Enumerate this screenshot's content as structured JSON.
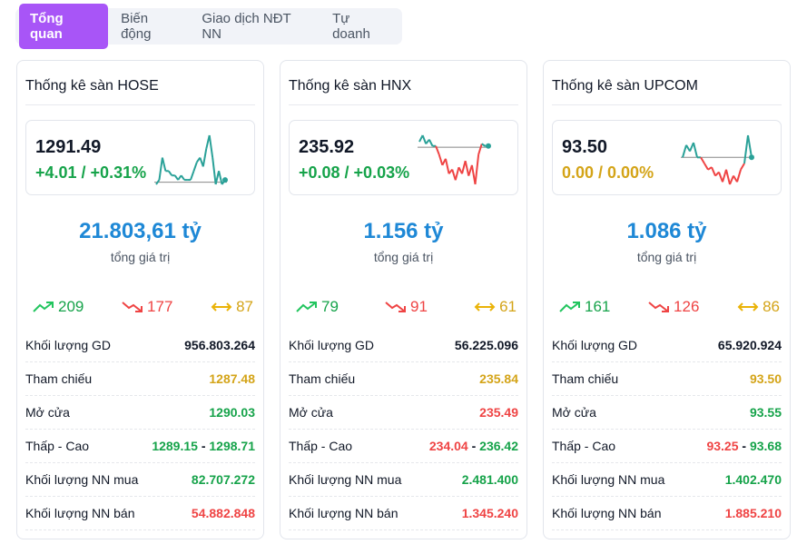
{
  "tabs": [
    "Tổng quan",
    "Biến động",
    "Giao dịch NĐT NN",
    "Tự doanh"
  ],
  "colors": {
    "up": "#16a34a",
    "down": "#ef4444",
    "ref": "#d4a418",
    "accent": "#a855f7",
    "line": "#2aa198"
  },
  "labels": {
    "total": "tổng giá trị",
    "volume": "Khối lượng GD",
    "ref": "Tham chiếu",
    "open": "Mở cửa",
    "lowhigh": "Thấp - Cao",
    "buy": "Khối lượng NN mua",
    "sell": "Khối lượng NN bán",
    "dash": "-"
  },
  "markets": [
    {
      "title": "Thống kê sàn HOSE",
      "index": "1291.49",
      "change": "+4.01 / +0.31%",
      "change_color": "g",
      "total": "21.803,61 tỷ",
      "up": "209",
      "down": "177",
      "same": "87",
      "volume": "956.803.264",
      "ref": "1287.48",
      "open": "1290.03",
      "open_color": "g",
      "low": "1289.15",
      "low_color": "g",
      "high": "1298.71",
      "high_color": "g",
      "buy": "82.707.272",
      "sell": "54.882.848",
      "spark": [
        1287,
        1288,
        1293,
        1290,
        1290,
        1289,
        1289,
        1288,
        1289,
        1288,
        1288,
        1288,
        1290,
        1292,
        1293,
        1291,
        1295,
        1298,
        1293,
        1287,
        1290,
        1287,
        1288
      ]
    },
    {
      "title": "Thống kê sàn HNX",
      "index": "235.92",
      "change": "+0.08 / +0.03%",
      "change_color": "g",
      "total": "1.156 tỷ",
      "up": "79",
      "down": "91",
      "same": "61",
      "volume": "56.225.096",
      "ref": "235.84",
      "open": "235.49",
      "open_color": "r",
      "low": "234.04",
      "low_color": "r",
      "high": "236.42",
      "high_color": "g",
      "buy": "2.481.400",
      "sell": "1.345.240",
      "spark": [
        236.1,
        236.4,
        236.0,
        236.2,
        235.9,
        235.9,
        235.5,
        235.0,
        235.3,
        234.6,
        234.8,
        234.3,
        234.9,
        234.6,
        235.2,
        234.5,
        235.0,
        234.1,
        235.5,
        236.0,
        235.9,
        235.9
      ]
    },
    {
      "title": "Thống kê sàn UPCOM",
      "index": "93.50",
      "change": "0.00 / 0.00%",
      "change_color": "y",
      "total": "1.086 tỷ",
      "up": "161",
      "down": "126",
      "same": "86",
      "volume": "65.920.924",
      "ref": "93.50",
      "open": "93.55",
      "open_color": "g",
      "low": "93.25",
      "low_color": "r",
      "high": "93.68",
      "high_color": "g",
      "buy": "1.402.470",
      "sell": "1.885.210",
      "spark": [
        93.5,
        93.6,
        93.55,
        93.62,
        93.5,
        93.5,
        93.45,
        93.4,
        93.42,
        93.35,
        93.38,
        93.3,
        93.4,
        93.28,
        93.35,
        93.3,
        93.4,
        93.45,
        93.68,
        93.5
      ]
    }
  ]
}
